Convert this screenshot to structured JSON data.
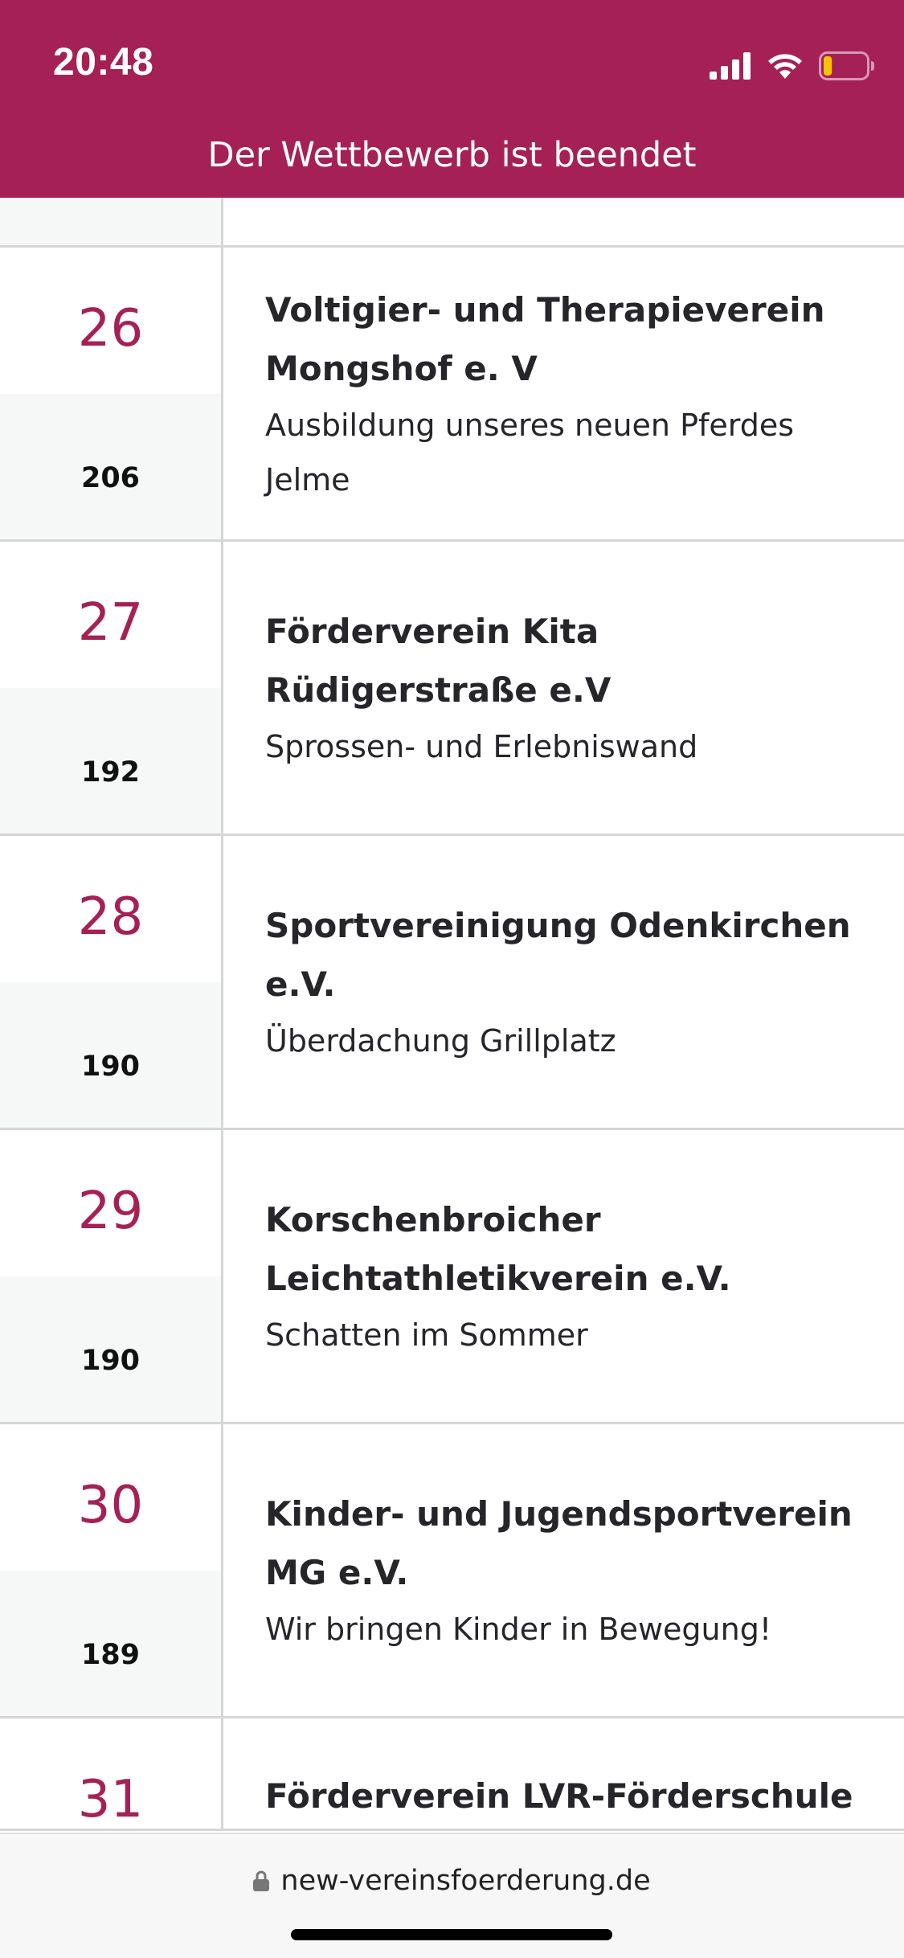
{
  "status_bar": {
    "time": "20:48",
    "icons": [
      "signal-icon",
      "wifi-icon",
      "battery-icon"
    ],
    "battery_fill_fraction": 0.2,
    "accent_color": "#a52155",
    "battery_color": "#f5c400"
  },
  "header": {
    "notice": "Der Wettbewerb ist beendet"
  },
  "entries": [
    {
      "rank": "26",
      "votes": "206",
      "club": "Voltigier- und Therapieverein Mongshof e. V",
      "project": "Ausbildung unseres neuen Pferdes Jelme"
    },
    {
      "rank": "27",
      "votes": "192",
      "club": "Förderverein Kita Rüdigerstraße e.V",
      "project": "Sprossen- und Erlebniswand"
    },
    {
      "rank": "28",
      "votes": "190",
      "club": "Sportvereinigung Odenkirchen e.V.",
      "project": "Überdachung Grillplatz"
    },
    {
      "rank": "29",
      "votes": "190",
      "club": "Korschenbroicher Leichtathletikverein e.V.",
      "project": "Schatten im Sommer"
    },
    {
      "rank": "30",
      "votes": "189",
      "club": "Kinder- und Jugendsportverein MG e.V.",
      "project": "Wir bringen Kinder in Bewegung!"
    },
    {
      "rank": "31",
      "club": "Förderverein LVR-Förderschule"
    }
  ],
  "browser": {
    "url": "new-vereinsfoerderung.de",
    "lock_icon": "lock-icon"
  }
}
